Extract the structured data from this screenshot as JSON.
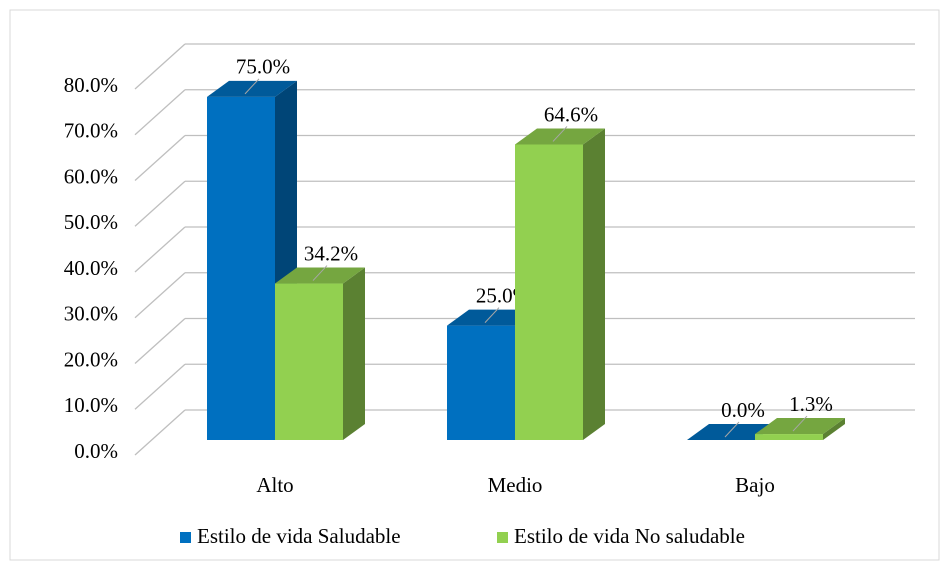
{
  "chart_data": {
    "type": "bar3d",
    "categories": [
      "Alto",
      "Medio",
      "Bajo"
    ],
    "series": [
      {
        "name": "Estilo de vida Saludable",
        "color": "#0070c0",
        "values": [
          75.0,
          25.0,
          0.0
        ],
        "value_labels": [
          "75.0%",
          "25.0%",
          "0.0%"
        ]
      },
      {
        "name": "Estilo de vida No saludable",
        "color": "#92d050",
        "values": [
          34.2,
          64.6,
          1.3
        ],
        "value_labels": [
          "34.2%",
          "64.6%",
          "1.3%"
        ]
      }
    ],
    "ylim": [
      0,
      80
    ],
    "yticks": [
      {
        "value": 0,
        "label": "0.0%"
      },
      {
        "value": 10,
        "label": "10.0%"
      },
      {
        "value": 20,
        "label": "20.0%"
      },
      {
        "value": 30,
        "label": "30.0%"
      },
      {
        "value": 40,
        "label": "40.0%"
      },
      {
        "value": 50,
        "label": "50.0%"
      },
      {
        "value": 60,
        "label": "60.0%"
      },
      {
        "value": 70,
        "label": "70.0%"
      },
      {
        "value": 80,
        "label": "80.0%"
      }
    ],
    "grid": true,
    "legend": "bottom"
  }
}
